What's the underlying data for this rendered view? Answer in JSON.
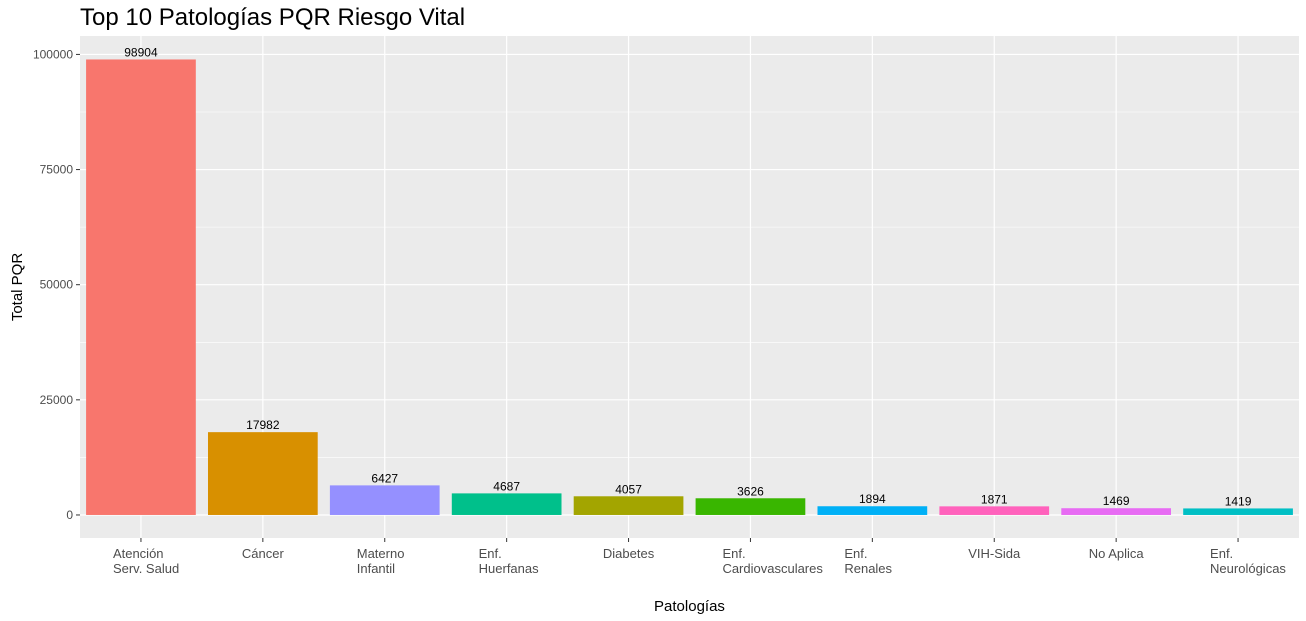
{
  "chart_data": {
    "type": "bar",
    "title": "Top 10 Patologías PQR Riesgo Vital",
    "xlabel": "Patologías",
    "ylabel": "Total PQR",
    "categories": [
      "Atención\nServ. Salud",
      "Cáncer",
      "Materno\nInfantil",
      "Enf.\nHuerfanas",
      "Diabetes",
      "Enf.\nCardiovasculares",
      "Enf.\nRenales",
      "VIH-Sida",
      "No Aplica",
      "Enf.\nNeurológicas"
    ],
    "values": [
      98904,
      17982,
      6427,
      4687,
      4057,
      3626,
      1894,
      1871,
      1469,
      1419
    ],
    "colors": [
      "#F8766D",
      "#D89000",
      "#9590FF",
      "#00C08B",
      "#A3A500",
      "#39B600",
      "#00B0F6",
      "#FF62BC",
      "#E76BF3",
      "#00BFC4"
    ],
    "ylim": [
      -5000,
      104000
    ],
    "yticks": [
      0,
      25000,
      50000,
      75000,
      100000
    ],
    "grid": true,
    "legend": "none",
    "panel_background": "#EBEBEB",
    "grid_color": "#FFFFFF"
  }
}
